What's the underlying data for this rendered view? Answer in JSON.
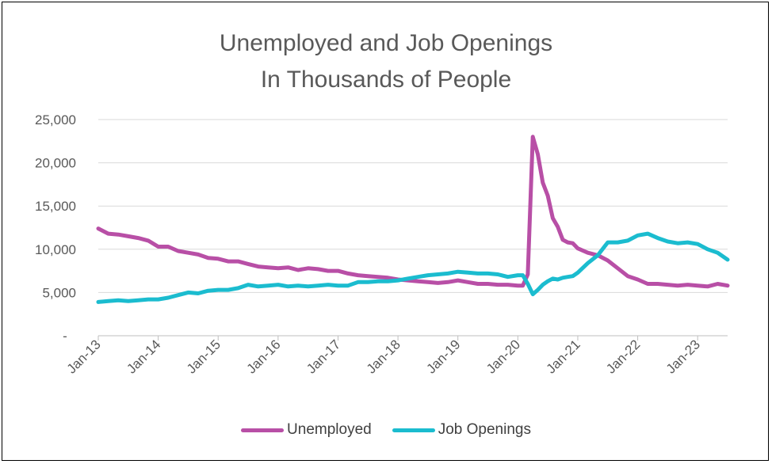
{
  "chart_data": {
    "type": "line",
    "title_line1": "Unemployed and Job Openings",
    "title_line2": "In Thousands of People",
    "ylim": [
      0,
      25000
    ],
    "yticks": [
      {
        "value": 0,
        "label": "-"
      },
      {
        "value": 5000,
        "label": "5,000"
      },
      {
        "value": 10000,
        "label": "10,000"
      },
      {
        "value": 15000,
        "label": "15,000"
      },
      {
        "value": 20000,
        "label": "20,000"
      },
      {
        "value": 25000,
        "label": "25,000"
      }
    ],
    "xticks": [
      "Jan-13",
      "Jan-14",
      "Jan-15",
      "Jan-16",
      "Jan-17",
      "Jan-18",
      "Jan-19",
      "Jan-20",
      "Jan-21",
      "Jan-22",
      "Jan-23"
    ],
    "x_start": "Jan-13",
    "x_end": "Jul-23",
    "grid": true,
    "legend_position": "bottom",
    "colors": {
      "Unemployed": "#b84fa6",
      "Job Openings": "#1bbccf"
    },
    "series": [
      {
        "name": "Unemployed",
        "x": [
          "Jan-13",
          "Mar-13",
          "May-13",
          "Jul-13",
          "Sep-13",
          "Nov-13",
          "Jan-14",
          "Mar-14",
          "May-14",
          "Jul-14",
          "Sep-14",
          "Nov-14",
          "Jan-15",
          "Mar-15",
          "May-15",
          "Jul-15",
          "Sep-15",
          "Nov-15",
          "Jan-16",
          "Mar-16",
          "May-16",
          "Jul-16",
          "Sep-16",
          "Nov-16",
          "Jan-17",
          "Mar-17",
          "May-17",
          "Jul-17",
          "Sep-17",
          "Nov-17",
          "Jan-18",
          "Mar-18",
          "May-18",
          "Jul-18",
          "Sep-18",
          "Nov-18",
          "Jan-19",
          "Mar-19",
          "May-19",
          "Jul-19",
          "Sep-19",
          "Nov-19",
          "Jan-20",
          "Feb-20",
          "Mar-20",
          "Apr-20",
          "May-20",
          "Jun-20",
          "Jul-20",
          "Aug-20",
          "Sep-20",
          "Oct-20",
          "Nov-20",
          "Dec-20",
          "Jan-21",
          "Mar-21",
          "May-21",
          "Jul-21",
          "Sep-21",
          "Nov-21",
          "Jan-22",
          "Mar-22",
          "May-22",
          "Jul-22",
          "Sep-22",
          "Nov-22",
          "Jan-23",
          "Mar-23",
          "May-23",
          "Jul-23"
        ],
        "values": [
          12400,
          11800,
          11700,
          11500,
          11300,
          11000,
          10300,
          10300,
          9800,
          9600,
          9400,
          9000,
          8900,
          8600,
          8600,
          8300,
          8000,
          7900,
          7800,
          7900,
          7600,
          7800,
          7700,
          7500,
          7500,
          7200,
          7000,
          6900,
          6800,
          6700,
          6500,
          6400,
          6300,
          6200,
          6100,
          6200,
          6400,
          6200,
          6000,
          6000,
          5900,
          5900,
          5800,
          5800,
          7100,
          23000,
          21000,
          17700,
          16200,
          13600,
          12600,
          11100,
          10800,
          10700,
          10100,
          9600,
          9300,
          8700,
          7800,
          6900,
          6500,
          6000,
          6000,
          5900,
          5800,
          5900,
          5800,
          5700,
          6000,
          5800
        ]
      },
      {
        "name": "Job Openings",
        "x": [
          "Jan-13",
          "Mar-13",
          "May-13",
          "Jul-13",
          "Sep-13",
          "Nov-13",
          "Jan-14",
          "Mar-14",
          "May-14",
          "Jul-14",
          "Sep-14",
          "Nov-14",
          "Jan-15",
          "Mar-15",
          "May-15",
          "Jul-15",
          "Sep-15",
          "Nov-15",
          "Jan-16",
          "Mar-16",
          "May-16",
          "Jul-16",
          "Sep-16",
          "Nov-16",
          "Jan-17",
          "Mar-17",
          "May-17",
          "Jul-17",
          "Sep-17",
          "Nov-17",
          "Jan-18",
          "Mar-18",
          "May-18",
          "Jul-18",
          "Sep-18",
          "Nov-18",
          "Jan-19",
          "Mar-19",
          "May-19",
          "Jul-19",
          "Sep-19",
          "Nov-19",
          "Jan-20",
          "Feb-20",
          "Mar-20",
          "Apr-20",
          "May-20",
          "Jun-20",
          "Jul-20",
          "Aug-20",
          "Sep-20",
          "Oct-20",
          "Nov-20",
          "Dec-20",
          "Jan-21",
          "Mar-21",
          "May-21",
          "Jul-21",
          "Sep-21",
          "Nov-21",
          "Jan-22",
          "Mar-22",
          "May-22",
          "Jul-22",
          "Sep-22",
          "Nov-22",
          "Jan-23",
          "Mar-23",
          "May-23",
          "Jul-23"
        ],
        "values": [
          3900,
          4000,
          4100,
          4000,
          4100,
          4200,
          4200,
          4400,
          4700,
          5000,
          4900,
          5200,
          5300,
          5300,
          5500,
          5900,
          5700,
          5800,
          5900,
          5700,
          5800,
          5700,
          5800,
          5900,
          5800,
          5800,
          6200,
          6200,
          6300,
          6300,
          6400,
          6600,
          6800,
          7000,
          7100,
          7200,
          7400,
          7300,
          7200,
          7200,
          7100,
          6800,
          7000,
          7000,
          6000,
          4800,
          5300,
          5900,
          6300,
          6600,
          6500,
          6700,
          6800,
          6900,
          7300,
          8400,
          9300,
          10800,
          10800,
          11000,
          11600,
          11800,
          11300,
          10900,
          10700,
          10800,
          10600,
          10000,
          9600,
          8800
        ]
      }
    ]
  }
}
